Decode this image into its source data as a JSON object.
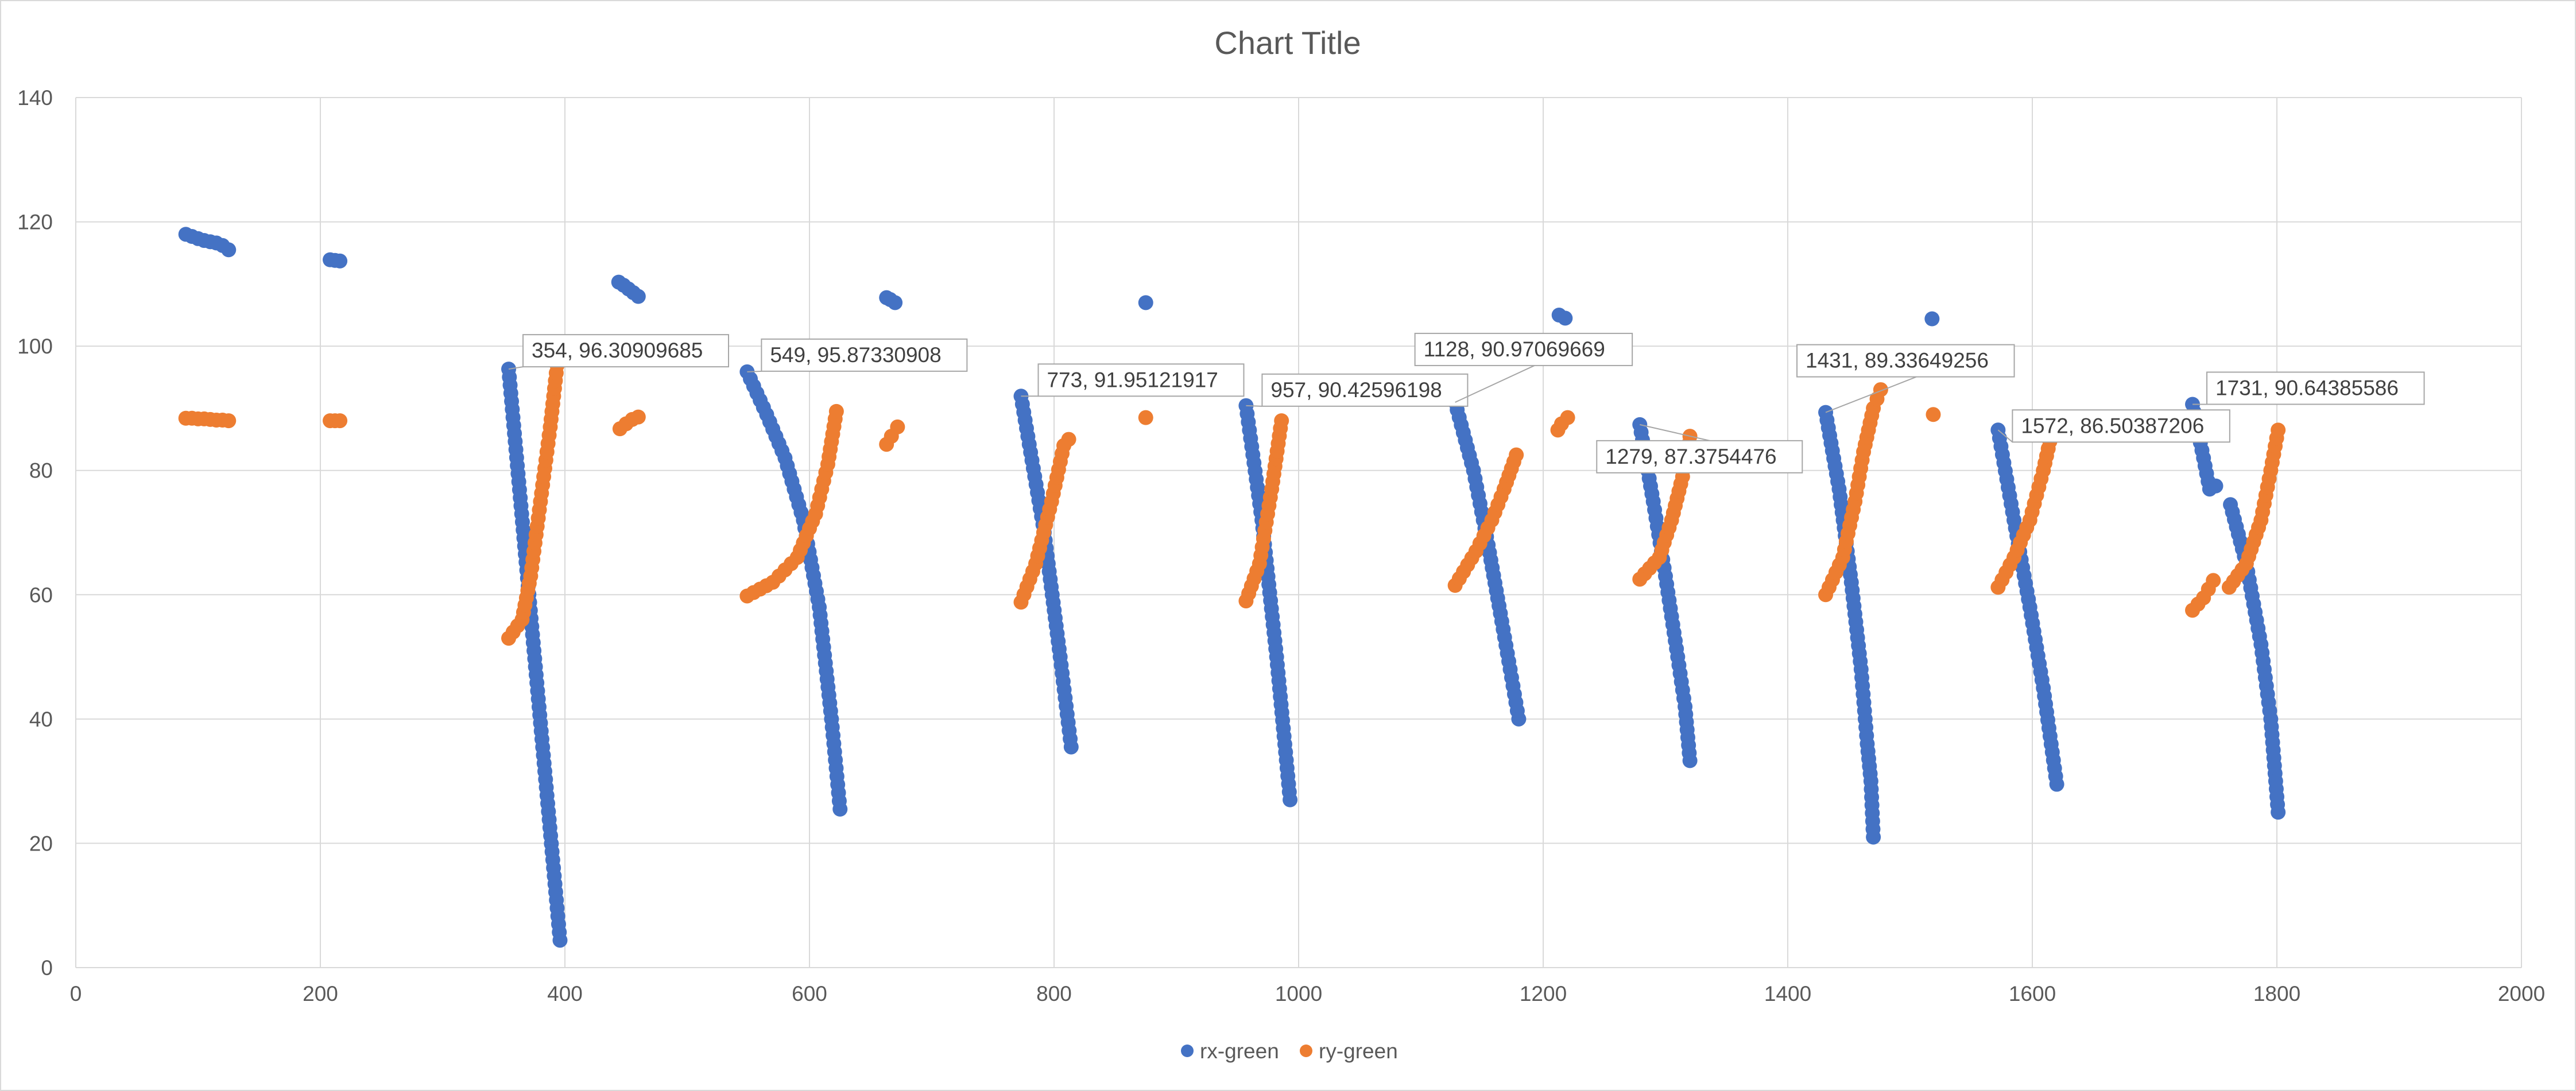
{
  "chart_data": {
    "type": "scatter",
    "title": "Chart Title",
    "xlim": [
      0,
      2000
    ],
    "ylim": [
      0,
      140
    ],
    "xticks": [
      "0",
      "200",
      "400",
      "600",
      "800",
      "1000",
      "1200",
      "1400",
      "1600",
      "1800",
      "2000"
    ],
    "yticks": [
      "0",
      "20",
      "40",
      "60",
      "80",
      "100",
      "120",
      "140"
    ],
    "grid": true,
    "legend_position": "bottom",
    "colors": {
      "rx": "#4472C4",
      "ry": "#ED7D31"
    },
    "legend": [
      {
        "name": "rx-green",
        "color": "#4472C4"
      },
      {
        "name": "ry-green",
        "color": "#ED7D31"
      }
    ],
    "series_segments": {
      "rx-green": [
        [
          [
            90,
            118
          ],
          [
            100,
            117.3
          ],
          [
            105,
            117
          ],
          [
            115,
            116.6
          ],
          [
            120,
            116.2
          ],
          [
            125,
            115.5
          ]
        ],
        [
          [
            208,
            113.9
          ],
          [
            212,
            113.8
          ],
          [
            216,
            113.7
          ]
        ],
        [
          [
            354,
            96.30909685
          ],
          [
            396,
            4.4
          ]
        ],
        [
          [
            444,
            110.3
          ],
          [
            448,
            109.8
          ],
          [
            452,
            109.2
          ],
          [
            456,
            108.6
          ],
          [
            460,
            108
          ]
        ],
        [
          [
            549,
            95.87330908
          ],
          [
            565,
            89
          ],
          [
            580,
            82
          ],
          [
            595,
            72
          ],
          [
            608,
            58
          ],
          [
            618,
            40
          ],
          [
            625,
            25.5
          ]
        ],
        [
          [
            663,
            107.8
          ],
          [
            666,
            107.5
          ],
          [
            670,
            107
          ]
        ],
        [
          [
            875,
            107
          ]
        ],
        [
          [
            773,
            91.95121917
          ],
          [
            792,
            70
          ],
          [
            805,
            50
          ],
          [
            814,
            35.5
          ]
        ],
        [
          [
            957,
            90.42596198
          ],
          [
            970,
            72
          ],
          [
            982,
            50
          ],
          [
            993,
            27
          ]
        ],
        [
          [
            1128,
            90.97069669
          ],
          [
            1143,
            80
          ],
          [
            1155,
            68
          ],
          [
            1165,
            57
          ],
          [
            1173,
            48
          ],
          [
            1180,
            40
          ]
        ],
        [
          [
            1213,
            105
          ],
          [
            1218,
            104.5
          ]
        ],
        [
          [
            1279,
            87.3754476
          ],
          [
            1290,
            75
          ],
          [
            1300,
            63
          ],
          [
            1310,
            50
          ],
          [
            1316,
            42
          ],
          [
            1320,
            33.3
          ]
        ],
        [
          [
            1431,
            89.33649256
          ],
          [
            1442,
            77
          ],
          [
            1452,
            62
          ],
          [
            1460,
            48
          ],
          [
            1465,
            36
          ],
          [
            1468,
            30
          ],
          [
            1470,
            21
          ]
        ],
        [
          [
            1518,
            104.4
          ]
        ],
        [
          [
            1572,
            86.50387206
          ],
          [
            1585,
            72
          ],
          [
            1598,
            58
          ],
          [
            1609,
            45
          ],
          [
            1620,
            29.5
          ]
        ],
        [
          [
            1731,
            90.64385586
          ],
          [
            1740,
            82
          ],
          [
            1745,
            77
          ],
          [
            1750,
            77.5
          ]
        ],
        [
          [
            1762,
            74.5
          ],
          [
            1775,
            65
          ],
          [
            1787,
            52
          ],
          [
            1795,
            40
          ],
          [
            1801,
            25
          ]
        ]
      ],
      "ry-green": [
        [
          [
            90,
            88.4
          ],
          [
            95,
            88.4
          ],
          [
            100,
            88.3
          ],
          [
            105,
            88.3
          ],
          [
            110,
            88.2
          ],
          [
            115,
            88.1
          ],
          [
            120,
            88.1
          ],
          [
            125,
            88
          ]
        ],
        [
          [
            208,
            88
          ],
          [
            212,
            88
          ],
          [
            216,
            88
          ]
        ],
        [
          [
            354,
            53
          ],
          [
            365,
            56
          ],
          [
            372,
            63
          ],
          [
            380,
            75
          ],
          [
            388,
            87
          ],
          [
            395,
            99.4
          ]
        ],
        [
          [
            445,
            86.7
          ],
          [
            450,
            87.5
          ],
          [
            455,
            88.2
          ],
          [
            460,
            88.6
          ]
        ],
        [
          [
            549,
            59.8
          ],
          [
            570,
            62
          ],
          [
            590,
            66
          ],
          [
            605,
            73
          ],
          [
            615,
            81
          ],
          [
            622,
            89.5
          ]
        ],
        [
          [
            663,
            84.2
          ],
          [
            667,
            85.5
          ],
          [
            672,
            87
          ]
        ],
        [
          [
            875,
            88.5
          ]
        ],
        [
          [
            773,
            58.8
          ],
          [
            785,
            65
          ],
          [
            798,
            75
          ],
          [
            808,
            84
          ],
          [
            812,
            85
          ]
        ],
        [
          [
            957,
            59
          ],
          [
            968,
            65
          ],
          [
            978,
            77
          ],
          [
            986,
            88
          ]
        ],
        [
          [
            1128,
            61.5
          ],
          [
            1145,
            67
          ],
          [
            1158,
            72
          ],
          [
            1168,
            77
          ],
          [
            1178,
            82.5
          ]
        ],
        [
          [
            1212,
            86.5
          ],
          [
            1215,
            87.5
          ],
          [
            1220,
            88.5
          ]
        ],
        [
          [
            1279,
            62.5
          ],
          [
            1295,
            66
          ],
          [
            1305,
            72
          ],
          [
            1314,
            79
          ],
          [
            1320,
            85.5
          ]
        ],
        [
          [
            1431,
            60
          ],
          [
            1445,
            66
          ],
          [
            1455,
            75
          ],
          [
            1462,
            83
          ],
          [
            1470,
            90
          ],
          [
            1476,
            93
          ]
        ],
        [
          [
            1519,
            89
          ]
        ],
        [
          [
            1572,
            61.2
          ],
          [
            1585,
            66
          ],
          [
            1598,
            72
          ],
          [
            1609,
            80
          ],
          [
            1617,
            87
          ]
        ],
        [
          [
            1731,
            57.5
          ],
          [
            1740,
            59.5
          ],
          [
            1748,
            62.3
          ]
        ],
        [
          [
            1761,
            61.2
          ],
          [
            1775,
            65
          ],
          [
            1787,
            72
          ],
          [
            1795,
            80
          ],
          [
            1801,
            86.5
          ]
        ]
      ]
    },
    "data_labels": [
      {
        "text": "354, 96.30909685",
        "x": 354,
        "y": 96.30909685
      },
      {
        "text": "549, 95.87330908",
        "x": 549,
        "y": 95.87330908
      },
      {
        "text": "773, 91.95121917",
        "x": 773,
        "y": 91.95121917
      },
      {
        "text": "957, 90.42596198",
        "x": 957,
        "y": 90.42596198
      },
      {
        "text": "1128, 90.97069669",
        "x": 1128,
        "y": 90.97069669
      },
      {
        "text": "1279, 87.3754476",
        "x": 1279,
        "y": 87.3754476
      },
      {
        "text": "1431, 89.33649256",
        "x": 1431,
        "y": 89.33649256
      },
      {
        "text": "1572, 86.50387206",
        "x": 1572,
        "y": 86.50387206
      },
      {
        "text": "1731, 90.64385586",
        "x": 1731,
        "y": 90.64385586
      }
    ]
  }
}
